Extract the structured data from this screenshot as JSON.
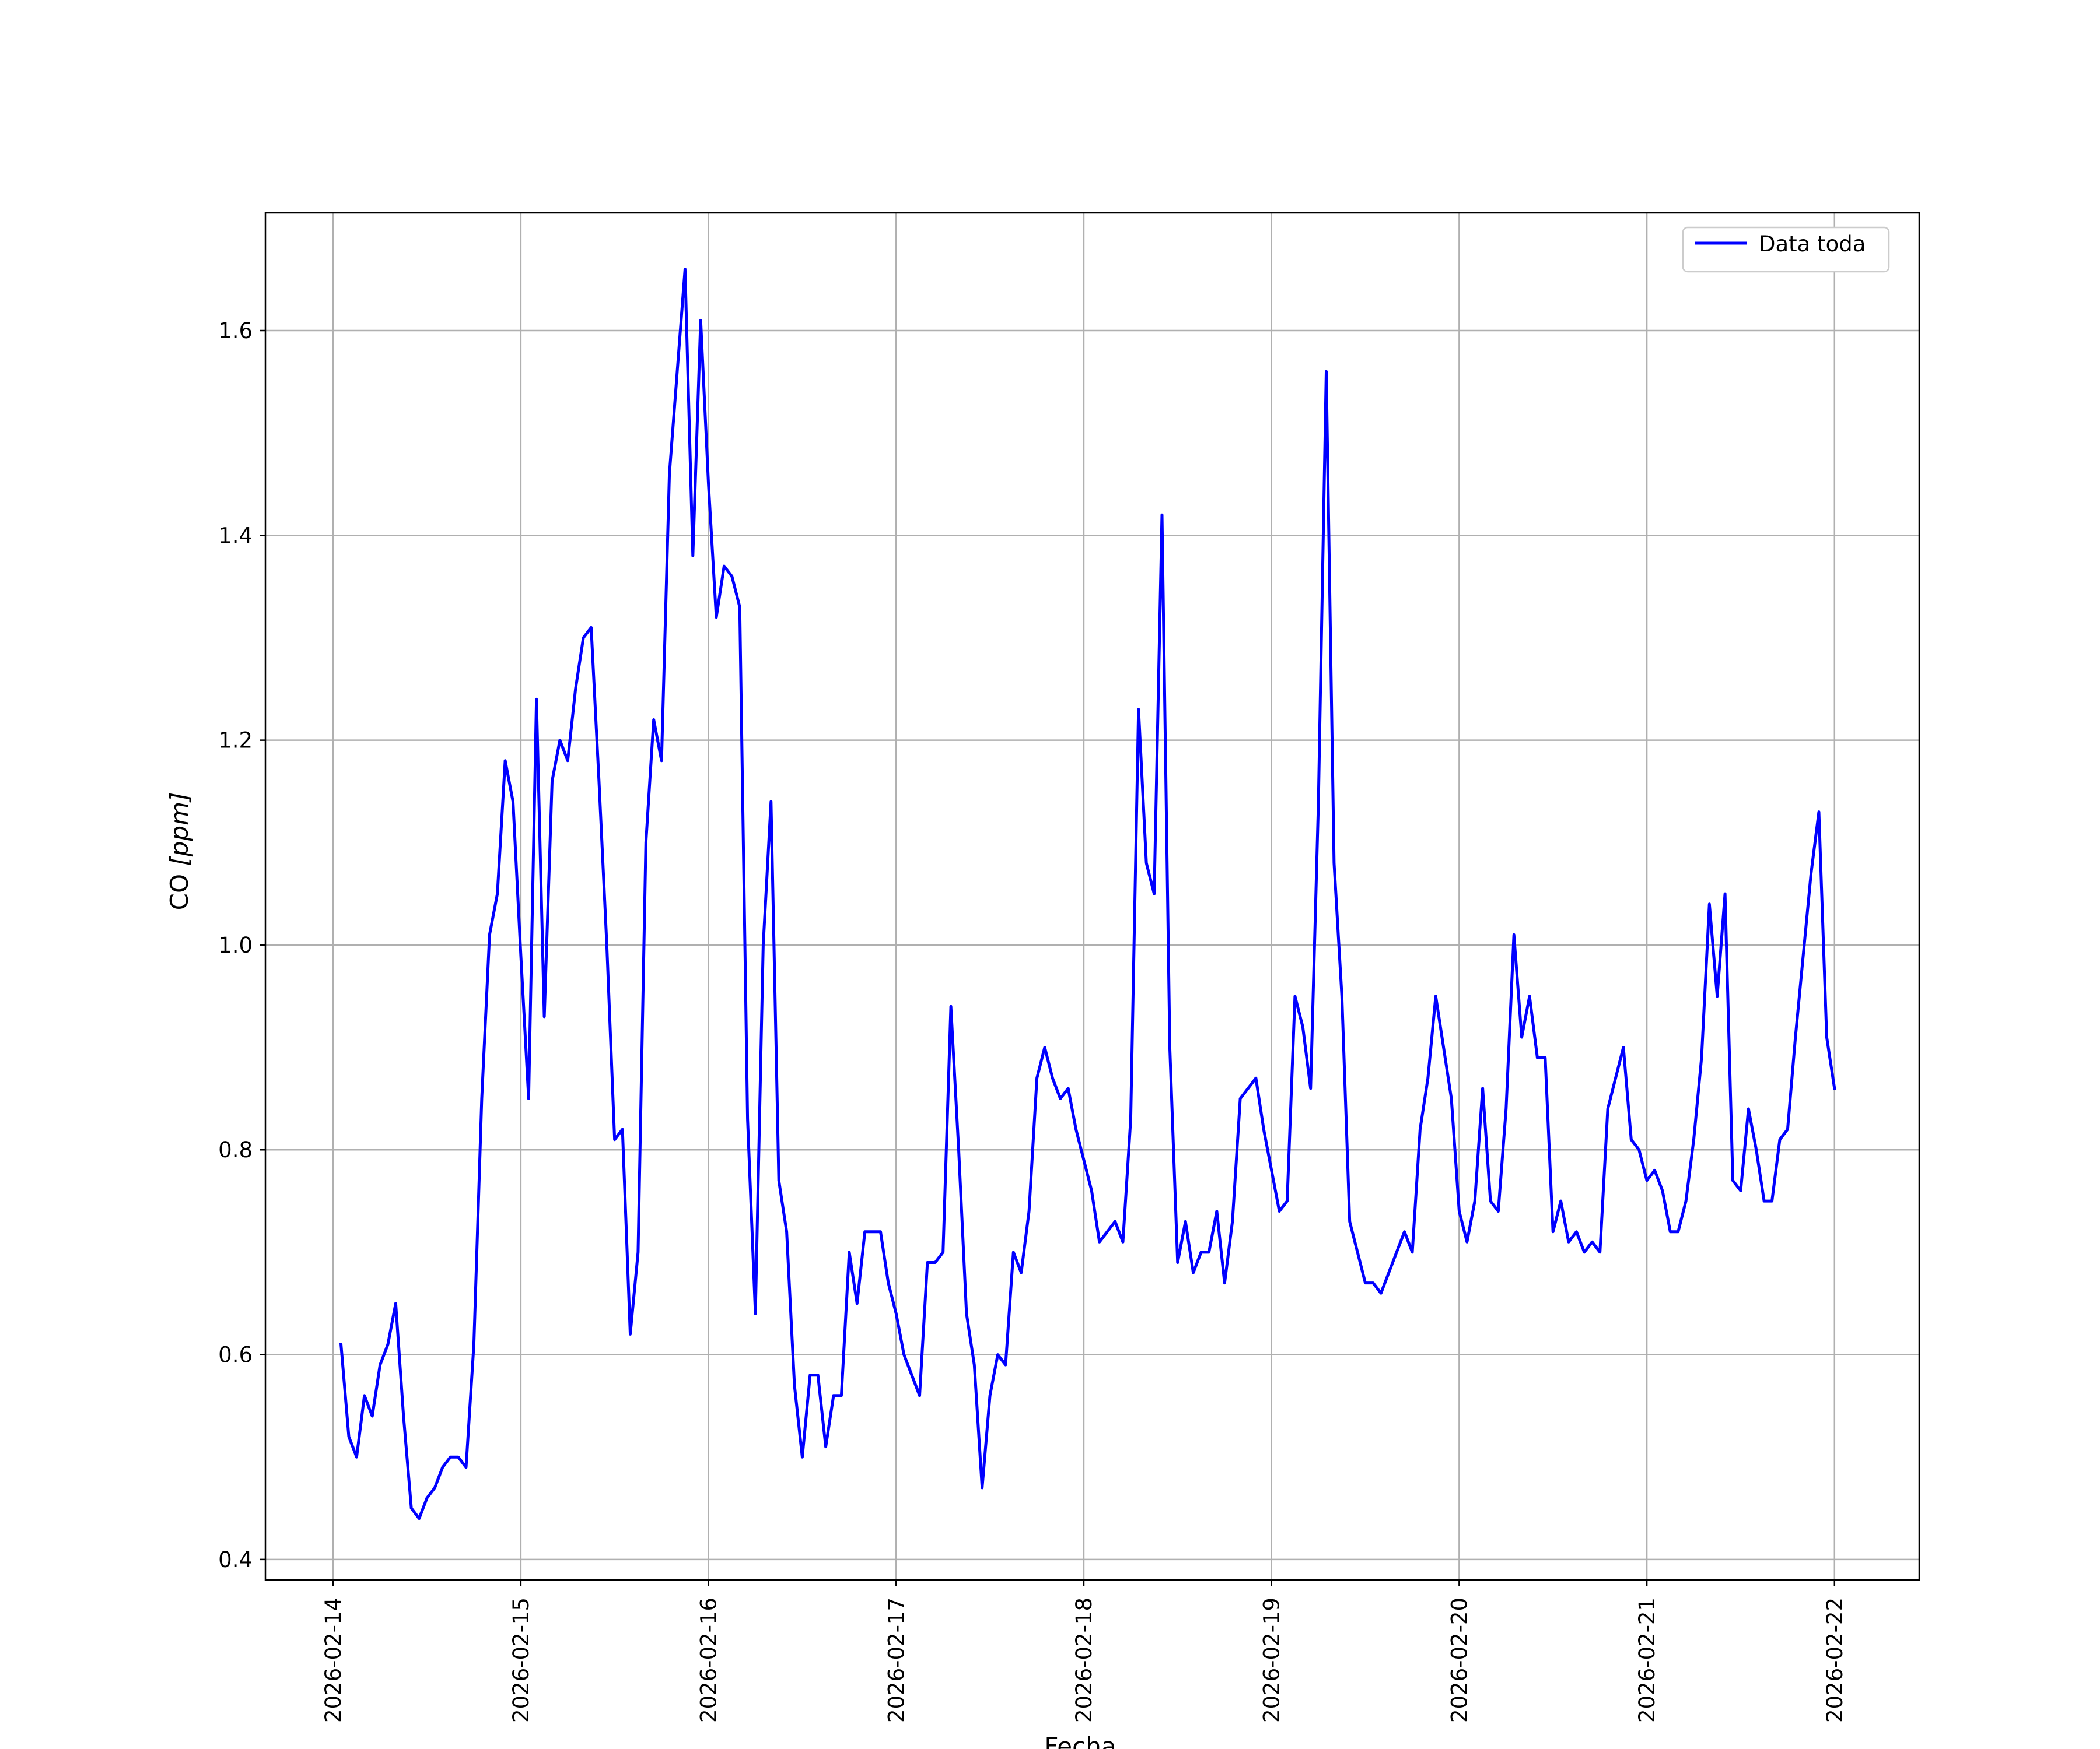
{
  "chart_data": {
    "type": "line",
    "title": "",
    "xlabel": "Fecha",
    "ylabel_main": "CO ",
    "ylabel_unit": "[ppm]",
    "ylim": [
      0.38,
      1.715
    ],
    "xlim": [
      "2026-02-13T15:20:00",
      "2026-02-22T10:50:00"
    ],
    "grid": true,
    "legend_position": "upper right",
    "x_ticks": [
      "2026-02-14",
      "2026-02-15",
      "2026-02-16",
      "2026-02-17",
      "2026-02-18",
      "2026-02-19",
      "2026-02-20",
      "2026-02-21",
      "2026-02-22"
    ],
    "y_ticks": [
      "0.4",
      "0.6",
      "0.8",
      "1.0",
      "1.2",
      "1.4",
      "1.6"
    ],
    "series": [
      {
        "name": "Data toda",
        "color": "#0000ff",
        "x": [
          "2026-02-14T01:00",
          "2026-02-14T02:00",
          "2026-02-14T03:00",
          "2026-02-14T04:00",
          "2026-02-14T05:00",
          "2026-02-14T06:00",
          "2026-02-14T07:00",
          "2026-02-14T08:00",
          "2026-02-14T09:00",
          "2026-02-14T10:00",
          "2026-02-14T11:00",
          "2026-02-14T12:00",
          "2026-02-14T13:00",
          "2026-02-14T14:00",
          "2026-02-14T15:00",
          "2026-02-14T16:00",
          "2026-02-14T17:00",
          "2026-02-14T18:00",
          "2026-02-14T19:00",
          "2026-02-14T20:00",
          "2026-02-14T21:00",
          "2026-02-14T22:00",
          "2026-02-14T23:00",
          "2026-02-15T00:00",
          "2026-02-15T01:00",
          "2026-02-15T02:00",
          "2026-02-15T03:00",
          "2026-02-15T04:00",
          "2026-02-15T05:00",
          "2026-02-15T06:00",
          "2026-02-15T07:00",
          "2026-02-15T08:00",
          "2026-02-15T09:00",
          "2026-02-15T10:00",
          "2026-02-15T11:00",
          "2026-02-15T12:00",
          "2026-02-15T13:00",
          "2026-02-15T14:00",
          "2026-02-15T15:00",
          "2026-02-15T16:00",
          "2026-02-15T17:00",
          "2026-02-15T18:00",
          "2026-02-15T19:00",
          "2026-02-15T20:00",
          "2026-02-15T21:00",
          "2026-02-15T22:00",
          "2026-02-15T23:00",
          "2026-02-16T00:00",
          "2026-02-16T01:00",
          "2026-02-16T02:00",
          "2026-02-16T03:00",
          "2026-02-16T04:00",
          "2026-02-16T05:00",
          "2026-02-16T06:00",
          "2026-02-16T07:00",
          "2026-02-16T08:00",
          "2026-02-16T09:00",
          "2026-02-16T10:00",
          "2026-02-16T11:00",
          "2026-02-16T12:00",
          "2026-02-16T13:00",
          "2026-02-16T14:00",
          "2026-02-16T15:00",
          "2026-02-16T16:00",
          "2026-02-16T17:00",
          "2026-02-16T18:00",
          "2026-02-16T19:00",
          "2026-02-16T20:00",
          "2026-02-16T21:00",
          "2026-02-16T22:00",
          "2026-02-16T23:00",
          "2026-02-17T00:00",
          "2026-02-17T01:00",
          "2026-02-17T02:00",
          "2026-02-17T03:00",
          "2026-02-17T04:00",
          "2026-02-17T05:00",
          "2026-02-17T06:00",
          "2026-02-17T07:00",
          "2026-02-17T08:00",
          "2026-02-17T09:00",
          "2026-02-17T10:00",
          "2026-02-17T11:00",
          "2026-02-17T12:00",
          "2026-02-17T13:00",
          "2026-02-17T14:00",
          "2026-02-17T15:00",
          "2026-02-17T16:00",
          "2026-02-17T17:00",
          "2026-02-17T18:00",
          "2026-02-17T19:00",
          "2026-02-17T20:00",
          "2026-02-17T21:00",
          "2026-02-17T22:00",
          "2026-02-17T23:00",
          "2026-02-18T00:00",
          "2026-02-18T01:00",
          "2026-02-18T02:00",
          "2026-02-18T03:00",
          "2026-02-18T04:00",
          "2026-02-18T05:00",
          "2026-02-18T06:00",
          "2026-02-18T07:00",
          "2026-02-18T08:00",
          "2026-02-18T09:00",
          "2026-02-18T10:00",
          "2026-02-18T11:00",
          "2026-02-18T12:00",
          "2026-02-18T13:00",
          "2026-02-18T14:00",
          "2026-02-18T15:00",
          "2026-02-18T16:00",
          "2026-02-18T17:00",
          "2026-02-18T18:00",
          "2026-02-18T19:00",
          "2026-02-18T20:00",
          "2026-02-18T21:00",
          "2026-02-18T22:00",
          "2026-02-18T23:00",
          "2026-02-19T00:00",
          "2026-02-19T01:00",
          "2026-02-19T02:00",
          "2026-02-19T03:00",
          "2026-02-19T04:00",
          "2026-02-19T05:00",
          "2026-02-19T06:00",
          "2026-02-19T07:00",
          "2026-02-19T08:00",
          "2026-02-19T09:00",
          "2026-02-19T10:00",
          "2026-02-19T11:00",
          "2026-02-19T12:00",
          "2026-02-19T13:00",
          "2026-02-19T14:00",
          "2026-02-19T15:00",
          "2026-02-19T16:00",
          "2026-02-19T17:00",
          "2026-02-19T18:00",
          "2026-02-19T19:00",
          "2026-02-19T20:00",
          "2026-02-19T21:00",
          "2026-02-19T22:00",
          "2026-02-19T23:00",
          "2026-02-20T00:00",
          "2026-02-20T01:00",
          "2026-02-20T02:00",
          "2026-02-20T03:00",
          "2026-02-20T04:00",
          "2026-02-20T05:00",
          "2026-02-20T06:00",
          "2026-02-20T07:00",
          "2026-02-20T08:00",
          "2026-02-20T09:00",
          "2026-02-20T10:00",
          "2026-02-20T11:00",
          "2026-02-20T12:00",
          "2026-02-20T13:00",
          "2026-02-20T14:00",
          "2026-02-20T15:00",
          "2026-02-20T16:00",
          "2026-02-20T17:00",
          "2026-02-20T18:00",
          "2026-02-20T19:00",
          "2026-02-20T20:00",
          "2026-02-20T21:00",
          "2026-02-20T22:00",
          "2026-02-20T23:00",
          "2026-02-21T00:00",
          "2026-02-21T01:00",
          "2026-02-21T02:00",
          "2026-02-21T03:00",
          "2026-02-21T04:00",
          "2026-02-21T05:00",
          "2026-02-21T06:00",
          "2026-02-21T07:00",
          "2026-02-21T08:00",
          "2026-02-21T09:00",
          "2026-02-21T10:00",
          "2026-02-21T11:00",
          "2026-02-21T12:00",
          "2026-02-21T13:00",
          "2026-02-21T14:00",
          "2026-02-21T15:00",
          "2026-02-21T16:00",
          "2026-02-21T17:00",
          "2026-02-21T18:00",
          "2026-02-21T19:00",
          "2026-02-21T20:00",
          "2026-02-21T21:00",
          "2026-02-21T22:00",
          "2026-02-21T23:00",
          "2026-02-22T00:00"
        ],
        "values": [
          0.61,
          0.52,
          0.5,
          0.56,
          0.54,
          0.59,
          0.61,
          0.65,
          0.54,
          0.45,
          0.44,
          0.46,
          0.47,
          0.49,
          0.5,
          0.5,
          0.49,
          0.61,
          0.85,
          1.01,
          1.05,
          1.18,
          1.14,
          0.99,
          0.85,
          1.24,
          0.93,
          1.16,
          1.2,
          1.18,
          1.25,
          1.3,
          1.31,
          1.16,
          1.0,
          0.81,
          0.82,
          0.62,
          0.7,
          1.1,
          1.22,
          1.18,
          1.46,
          1.56,
          1.66,
          1.38,
          1.61,
          1.45,
          1.32,
          1.37,
          1.36,
          1.33,
          0.83,
          0.64,
          1.0,
          1.14,
          0.77,
          0.72,
          0.57,
          0.5,
          0.58,
          0.58,
          0.51,
          0.56,
          0.56,
          0.7,
          0.65,
          0.72,
          0.72,
          0.72,
          0.67,
          0.64,
          0.6,
          0.58,
          0.56,
          0.69,
          0.69,
          0.7,
          0.94,
          0.8,
          0.64,
          0.59,
          0.47,
          0.56,
          0.6,
          0.59,
          0.7,
          0.68,
          0.74,
          0.87,
          0.9,
          0.87,
          0.85,
          0.86,
          0.82,
          0.79,
          0.76,
          0.71,
          0.72,
          0.73,
          0.71,
          0.83,
          1.23,
          1.08,
          1.05,
          1.42,
          0.9,
          0.69,
          0.73,
          0.68,
          0.7,
          0.7,
          0.74,
          0.67,
          0.73,
          0.85,
          0.86,
          0.87,
          0.82,
          0.78,
          0.74,
          0.75,
          0.95,
          0.92,
          0.86,
          1.14,
          1.56,
          1.08,
          0.95,
          0.73,
          0.7,
          0.67,
          0.67,
          0.66,
          0.68,
          0.7,
          0.72,
          0.7,
          0.82,
          0.87,
          0.95,
          0.9,
          0.85,
          0.74,
          0.71,
          0.75,
          0.86,
          0.75,
          0.74,
          0.84,
          1.01,
          0.91,
          0.95,
          0.89,
          0.89,
          0.72,
          0.75,
          0.71,
          0.72,
          0.7,
          0.71,
          0.7,
          0.84,
          0.87,
          0.9,
          0.81,
          0.8,
          0.77,
          0.78,
          0.76,
          0.72,
          0.72,
          0.75,
          0.81,
          0.89,
          1.04,
          0.95,
          1.05,
          0.77,
          0.76,
          0.84,
          0.8,
          0.75,
          0.75,
          0.81,
          0.82,
          0.91,
          0.99,
          1.07,
          1.13,
          0.91,
          0.86
        ]
      }
    ]
  }
}
